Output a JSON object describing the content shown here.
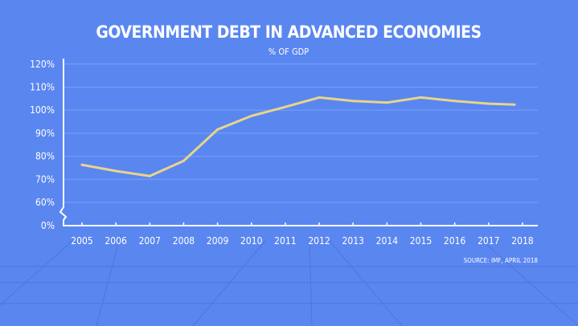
{
  "chart_data": {
    "type": "line",
    "title": "GOVERNMENT DEBT IN ADVANCED ECONOMIES",
    "subtitle": "% OF GDP",
    "source": "SOURCE: IMF, APRIL 2018",
    "xlabel": "",
    "ylabel": "",
    "y_axis_break": "between 0% and 60%",
    "y_ticks": [
      "0%",
      "60%",
      "70%",
      "80%",
      "90%",
      "100%",
      "110%",
      "120%"
    ],
    "y_tick_values": [
      0,
      60,
      70,
      80,
      90,
      100,
      110,
      120
    ],
    "ylim": [
      60,
      120
    ],
    "grid": true,
    "categories": [
      "2005",
      "2006",
      "2007",
      "2008",
      "2009",
      "2010",
      "2011",
      "2012",
      "2013",
      "2014",
      "2015",
      "2016",
      "2017",
      "2018"
    ],
    "series": [
      {
        "name": "Government debt (% of GDP)",
        "color": "#e8d48a",
        "values": [
          76.3,
          73.6,
          71.4,
          78,
          91.6,
          97.5,
          101.4,
          105.5,
          104,
          103.3,
          105.5,
          104,
          102.8,
          102.4
        ]
      }
    ]
  }
}
